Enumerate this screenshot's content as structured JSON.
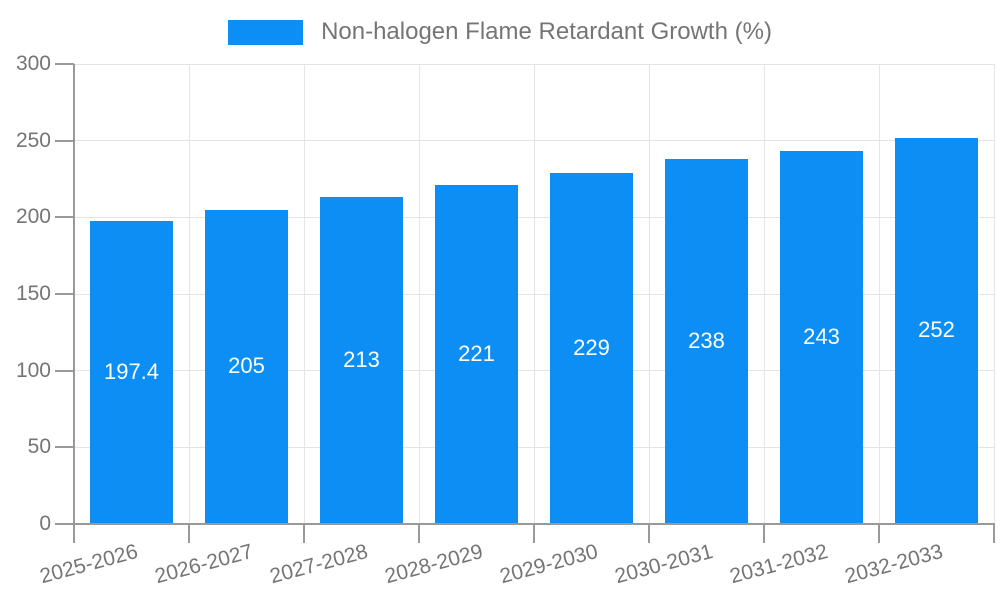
{
  "legend": {
    "label": "Non-halogen Flame Retardant Growth (%)"
  },
  "chart_data": {
    "type": "bar",
    "title": "",
    "categories": [
      "2025-2026",
      "2026-2027",
      "2027-2028",
      "2028-2029",
      "2029-2030",
      "2030-2031",
      "2031-2032",
      "2032-2033"
    ],
    "series": [
      {
        "name": "Non-halogen Flame Retardant Growth (%)",
        "values": [
          197.4,
          205,
          213,
          221,
          229,
          238,
          243,
          252
        ]
      }
    ],
    "value_labels": [
      "197.4",
      "205",
      "213",
      "221",
      "229",
      "238",
      "243",
      "252"
    ],
    "xlabel": "",
    "ylabel": "",
    "ylim": [
      0,
      300
    ],
    "yticks": [
      0,
      50,
      100,
      150,
      200,
      250,
      300
    ],
    "grid": true,
    "legend_position": "top",
    "bar_color": "#0d8ef5",
    "value_label_color": "#ffffff"
  },
  "colors": {
    "bar": "#0d8ef5",
    "grid": "#e4e4e4",
    "axis": "#999999",
    "text": "#757575",
    "value_text": "#ffffff",
    "background": "#ffffff"
  }
}
